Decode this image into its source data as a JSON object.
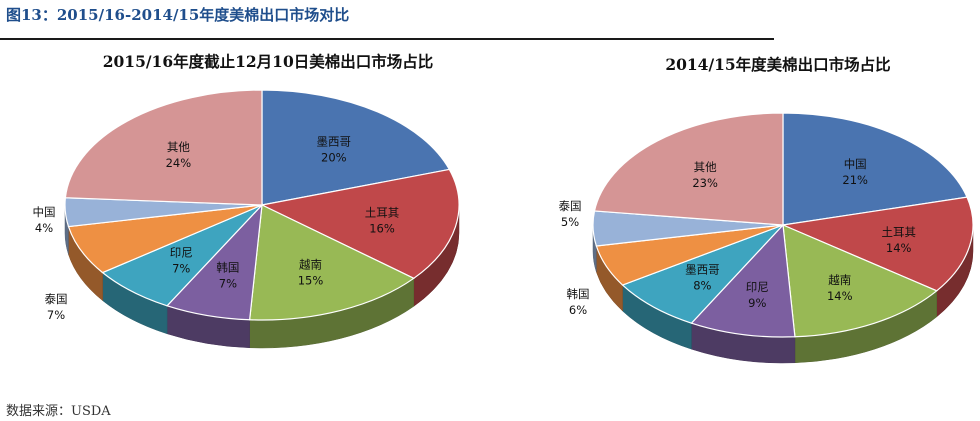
{
  "figure_title": "图13：2015/16-2014/15年度美棉出口市场对比",
  "source": "数据来源：USDA",
  "chart_data": [
    {
      "type": "pie",
      "title": "2015/16年度截止12月10日美棉出口市场占比",
      "slices": [
        {
          "name": "墨西哥",
          "value": 20,
          "label": "20%",
          "color": "#4a74b0"
        },
        {
          "name": "土耳其",
          "value": 16,
          "label": "16%",
          "color": "#c0484a"
        },
        {
          "name": "越南",
          "value": 15,
          "label": "15%",
          "color": "#98b955"
        },
        {
          "name": "韩国",
          "value": 7,
          "label": "7%",
          "color": "#7c5fa0"
        },
        {
          "name": "印尼",
          "value": 7,
          "label": "7%",
          "color": "#3ea4bf"
        },
        {
          "name": "泰国",
          "value": 7,
          "label": "7%",
          "color": "#ee9043"
        },
        {
          "name": "中国",
          "value": 4,
          "label": "4%",
          "color": "#98b2d8"
        },
        {
          "name": "其他",
          "value": 24,
          "label": "24%",
          "color": "#d59595"
        }
      ]
    },
    {
      "type": "pie",
      "title": "2014/15年度美棉出口市场占比",
      "slices": [
        {
          "name": "中国",
          "value": 21,
          "label": "21%",
          "color": "#4a74b0"
        },
        {
          "name": "土耳其",
          "value": 14,
          "label": "14%",
          "color": "#c0484a"
        },
        {
          "name": "越南",
          "value": 14,
          "label": "14%",
          "color": "#98b955"
        },
        {
          "name": "印尼",
          "value": 9,
          "label": "9%",
          "color": "#7c5fa0"
        },
        {
          "name": "墨西哥",
          "value": 8,
          "label": "8%",
          "color": "#3ea4bf"
        },
        {
          "name": "韩国",
          "value": 6,
          "label": "6%",
          "color": "#ee9043"
        },
        {
          "name": "泰国",
          "value": 5,
          "label": "5%",
          "color": "#98b2d8"
        },
        {
          "name": "其他",
          "value": 23,
          "label": "23%",
          "color": "#d59595"
        }
      ]
    }
  ]
}
